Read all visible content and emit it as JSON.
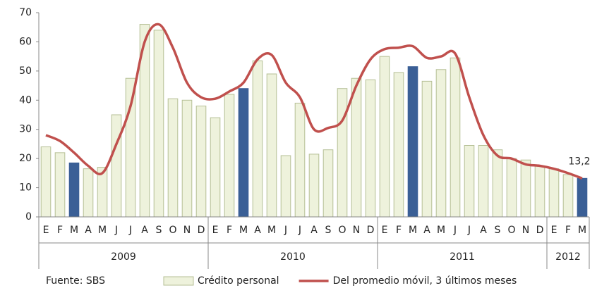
{
  "chart_data": {
    "type": "bar_line",
    "source": "Fuente: SBS",
    "categories": [
      "E",
      "F",
      "M",
      "A",
      "M",
      "J",
      "J",
      "A",
      "S",
      "O",
      "N",
      "D",
      "E",
      "F",
      "M",
      "A",
      "M",
      "J",
      "J",
      "A",
      "S",
      "O",
      "N",
      "D",
      "E",
      "F",
      "M",
      "A",
      "M",
      "J",
      "J",
      "A",
      "S",
      "O",
      "N",
      "D",
      "E",
      "F",
      "M"
    ],
    "groups": [
      {
        "label": "2009",
        "count": 12
      },
      {
        "label": "2010",
        "count": 12
      },
      {
        "label": "2011",
        "count": 12
      },
      {
        "label": "2012",
        "count": 3
      }
    ],
    "ylim": [
      0,
      70
    ],
    "yticks": [
      0,
      10,
      20,
      30,
      40,
      50,
      60,
      70
    ],
    "grid": false,
    "legend": "bottom",
    "series": [
      {
        "name": "Crédito personal",
        "type": "bar",
        "color": "#eef2dc",
        "edge_color": "#b5bf95",
        "colors": [
          "#eef2dc",
          "#eef2dc",
          "#3a5f96",
          "#eef2dc",
          "#eef2dc",
          "#eef2dc",
          "#eef2dc",
          "#eef2dc",
          "#eef2dc",
          "#eef2dc",
          "#eef2dc",
          "#eef2dc",
          "#eef2dc",
          "#eef2dc",
          "#3a5f96",
          "#eef2dc",
          "#eef2dc",
          "#eef2dc",
          "#eef2dc",
          "#eef2dc",
          "#eef2dc",
          "#eef2dc",
          "#eef2dc",
          "#eef2dc",
          "#eef2dc",
          "#eef2dc",
          "#3a5f96",
          "#eef2dc",
          "#eef2dc",
          "#eef2dc",
          "#eef2dc",
          "#eef2dc",
          "#eef2dc",
          "#eef2dc",
          "#eef2dc",
          "#eef2dc",
          "#eef2dc",
          "#eef2dc",
          "#3a5f96"
        ],
        "values": [
          24,
          22,
          18.5,
          16.5,
          17,
          35,
          47.5,
          66,
          64,
          40.5,
          40,
          38,
          34,
          42,
          44,
          53.5,
          49,
          21,
          39,
          21.5,
          23,
          44,
          47.5,
          47,
          55,
          49.5,
          51.5,
          46.5,
          50.5,
          54.5,
          24.5,
          24.5,
          23,
          20,
          19.5,
          17.5,
          16.5,
          14.5,
          13.2
        ]
      },
      {
        "name": "Del promedio móvil, 3 últimos meses",
        "type": "line",
        "color": "#c0504d",
        "values": [
          28,
          26,
          22,
          17.5,
          15,
          25,
          38,
          60,
          66,
          58,
          46,
          41,
          40.5,
          43,
          46,
          54,
          55.5,
          46,
          41,
          30,
          30.5,
          33,
          45,
          54,
          57.5,
          58,
          58.5,
          54.5,
          55,
          56,
          41,
          28,
          21,
          20,
          18,
          17.5,
          16.5,
          15,
          13.2
        ],
        "value_labels": [
          null,
          null,
          null,
          null,
          null,
          null,
          null,
          null,
          null,
          null,
          null,
          null,
          null,
          null,
          null,
          null,
          null,
          null,
          null,
          null,
          null,
          null,
          null,
          null,
          null,
          null,
          null,
          null,
          null,
          null,
          null,
          null,
          null,
          null,
          null,
          null,
          null,
          null,
          "13,2"
        ]
      }
    ]
  }
}
